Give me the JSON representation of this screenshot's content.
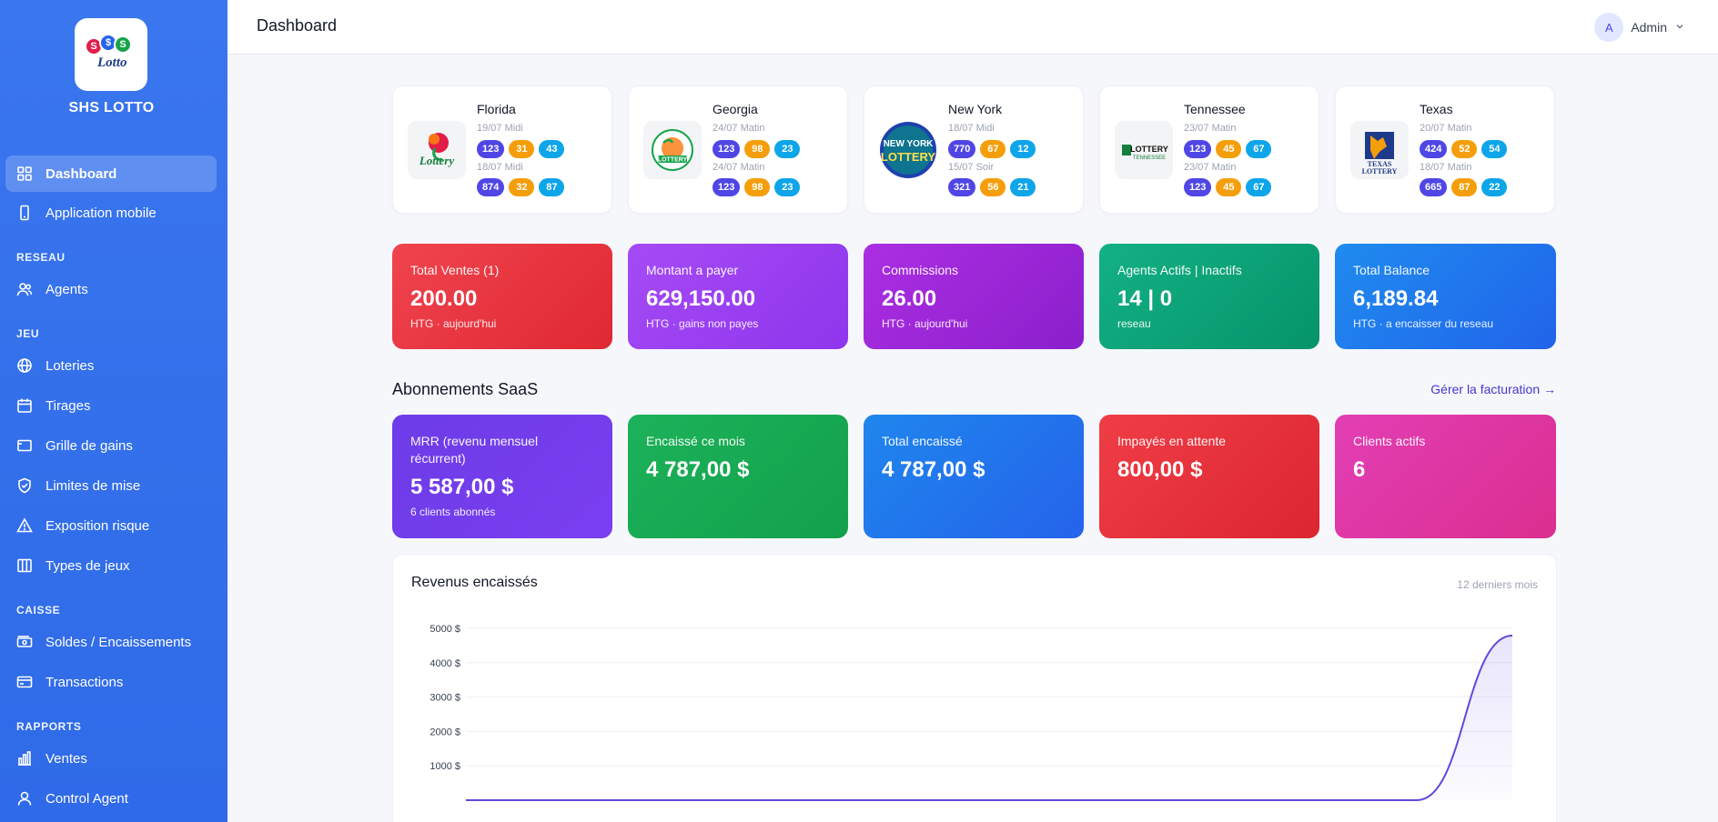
{
  "app": {
    "brand": "SHS LOTTO",
    "logo_text": "Lotto"
  },
  "colors": {
    "sidebar": "#3a76ee",
    "accent": "#4f46e5"
  },
  "sidebar": {
    "items": [
      {
        "label": "Dashboard",
        "icon": "grid-icon",
        "active": true
      },
      {
        "label": "Application mobile",
        "icon": "mobile-icon"
      }
    ],
    "sections": [
      {
        "title": "RESEAU",
        "items": [
          {
            "label": "Agents",
            "icon": "users-icon"
          }
        ]
      },
      {
        "title": "JEU",
        "items": [
          {
            "label": "Loteries",
            "icon": "globe-icon"
          },
          {
            "label": "Tirages",
            "icon": "calendar-icon"
          },
          {
            "label": "Grille de gains",
            "icon": "table-icon"
          },
          {
            "label": "Limites de mise",
            "icon": "shield-icon"
          },
          {
            "label": "Exposition risque",
            "icon": "warning-icon"
          },
          {
            "label": "Types de jeux",
            "icon": "columns-icon"
          }
        ]
      },
      {
        "title": "CAISSE",
        "items": [
          {
            "label": "Soldes / Encaissements",
            "icon": "cash-icon"
          },
          {
            "label": "Transactions",
            "icon": "card-icon"
          }
        ]
      },
      {
        "title": "RAPPORTS",
        "items": [
          {
            "label": "Ventes",
            "icon": "bar-chart-icon"
          },
          {
            "label": "Control Agent",
            "icon": "user-icon"
          }
        ]
      }
    ]
  },
  "header": {
    "title": "Dashboard",
    "user_initial": "A",
    "user_name": "Admin"
  },
  "lotteries": [
    {
      "name": "Florida",
      "d1": "19/07 Midi",
      "n1": [
        "123",
        "31",
        "43"
      ],
      "d2": "18/07 Midi",
      "n2": [
        "874",
        "32",
        "87"
      ]
    },
    {
      "name": "Georgia",
      "d1": "24/07 Matin",
      "n1": [
        "123",
        "98",
        "23"
      ],
      "d2": "24/07 Matin",
      "n2": [
        "123",
        "98",
        "23"
      ]
    },
    {
      "name": "New York",
      "d1": "18/07 Midi",
      "n1": [
        "770",
        "67",
        "12"
      ],
      "d2": "15/07 Soir",
      "n2": [
        "321",
        "56",
        "21"
      ]
    },
    {
      "name": "Tennessee",
      "d1": "23/07 Matin",
      "n1": [
        "123",
        "45",
        "67"
      ],
      "d2": "23/07 Matin",
      "n2": [
        "123",
        "45",
        "67"
      ]
    },
    {
      "name": "Texas",
      "d1": "20/07 Matin",
      "n1": [
        "424",
        "52",
        "54"
      ],
      "d2": "18/07 Matin",
      "n2": [
        "665",
        "87",
        "22"
      ]
    }
  ],
  "stats": [
    {
      "label": "Total Ventes (1)",
      "value": "200.00",
      "sub": "HTG · aujourd'hui",
      "color": "#e8333d"
    },
    {
      "label": "Montant a payer",
      "value": "629,150.00",
      "sub": "HTG · gains non payes",
      "color": "#9b3df0"
    },
    {
      "label": "Commissions",
      "value": "26.00",
      "sub": "HTG · aujourd'hui",
      "color": "#9d25d6"
    },
    {
      "label": "Agents Actifs | Inactifs",
      "value": "14 | 0",
      "sub": "reseau",
      "color": "#0ea077"
    },
    {
      "label": "Total Balance",
      "value": "6,189.84",
      "sub": "HTG · a encaisser du reseau",
      "color": "#1f78ee"
    }
  ],
  "saas": {
    "title": "Abonnements SaaS",
    "link": "Gérer la facturation →",
    "cards": [
      {
        "label": "MRR (revenu mensuel récurrent)",
        "value": "5 587,00 $",
        "sub": "6 clients abonnés",
        "color": "#6a3ce6"
      },
      {
        "label": "Encaissé ce mois",
        "value": "4 787,00 $",
        "sub": "",
        "color": "#17a653"
      },
      {
        "label": "Total encaissé",
        "value": "4 787,00 $",
        "sub": "",
        "color": "#1d7ae8"
      },
      {
        "label": "Impayés en attente",
        "value": "800,00 $",
        "sub": "",
        "color": "#e5323c"
      },
      {
        "label": "Clients actifs",
        "value": "6",
        "sub": "",
        "color": "#dd35a6"
      }
    ]
  },
  "revenue": {
    "title": "Revenus encaissés",
    "range": "12 derniers mois"
  },
  "chart_data": {
    "type": "area",
    "title": "Revenus encaissés",
    "ylim": [
      0,
      5000
    ],
    "yticks": [
      "1000 $",
      "2000 $",
      "3000 $",
      "4000 $",
      "5000 $"
    ],
    "ytick_values": [
      1000,
      2000,
      3000,
      4000,
      5000
    ],
    "series": [
      {
        "values": [
          0,
          0,
          0,
          0,
          0,
          0,
          0,
          0,
          0,
          0,
          0,
          4787
        ]
      }
    ],
    "grid": true
  }
}
